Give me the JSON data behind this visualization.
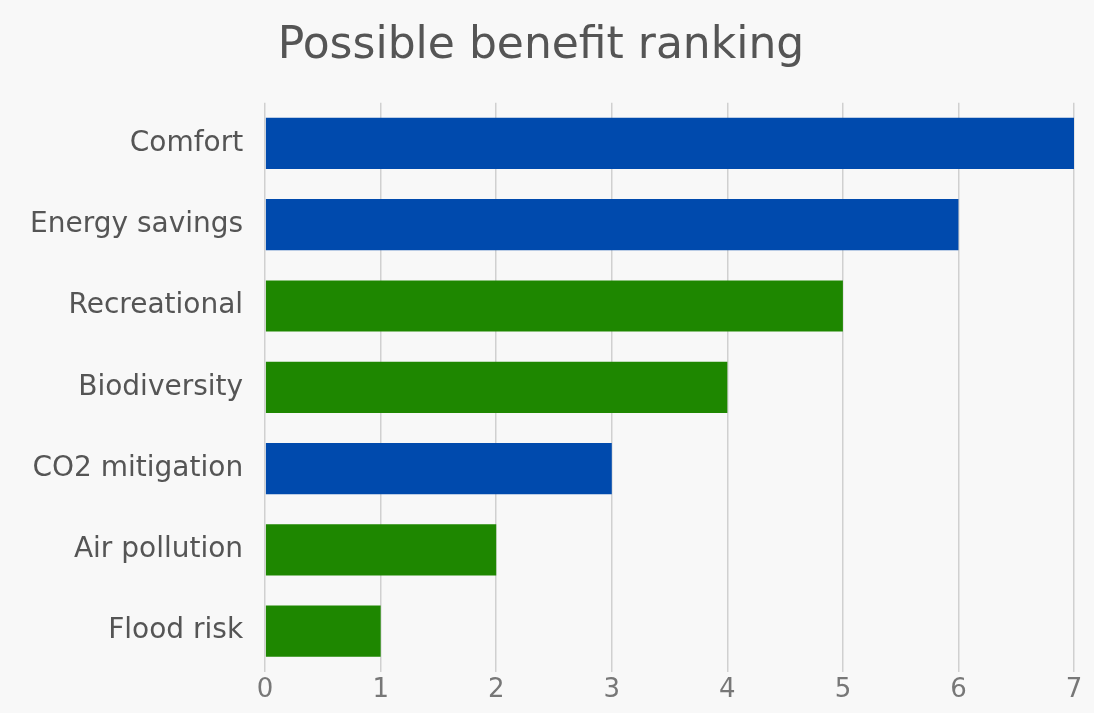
{
  "chart_data": {
    "type": "bar",
    "orientation": "horizontal",
    "title": "Possible benefit ranking",
    "categories": [
      "Comfort",
      "Energy savings",
      "Recreational",
      "Biodiversity",
      "CO2 mitigation",
      "Air pollution",
      "Flood risk"
    ],
    "values": [
      7,
      6,
      5,
      4,
      3,
      2,
      1
    ],
    "colors": [
      "#004aad",
      "#004aad",
      "#1e8700",
      "#1e8700",
      "#004aad",
      "#1e8700",
      "#1e8700"
    ],
    "xlim": [
      0,
      7
    ],
    "xticks": [
      0,
      1,
      2,
      3,
      4,
      5,
      6,
      7
    ],
    "grid": "x",
    "legend": false
  }
}
